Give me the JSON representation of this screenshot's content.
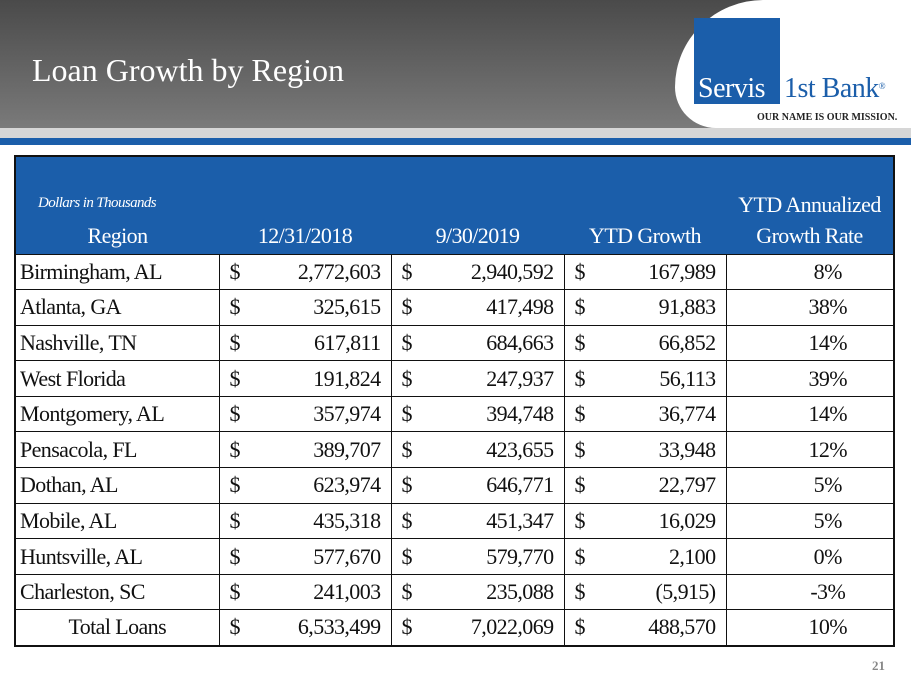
{
  "header": {
    "title": "Loan Growth by Region"
  },
  "logo": {
    "part1": "Servis",
    "part2": "1st Bank",
    "reg": "®",
    "tagline": "OUR NAME IS OUR MISSION."
  },
  "table": {
    "note": "Dollars in Thousands",
    "headers": [
      "Region",
      "12/31/2018",
      "9/30/2019",
      "YTD Growth",
      "YTD Annualized",
      "Growth Rate"
    ],
    "currency": "$",
    "rows": [
      [
        "Birmingham, AL",
        "2,772,603",
        "2,940,592",
        "167,989",
        "8%"
      ],
      [
        "Atlanta, GA",
        "325,615",
        "417,498",
        "91,883",
        "38%"
      ],
      [
        "Nashville, TN",
        "617,811",
        "684,663",
        "66,852",
        "14%"
      ],
      [
        "West Florida",
        "191,824",
        "247,937",
        "56,113",
        "39%"
      ],
      [
        "Montgomery, AL",
        "357,974",
        "394,748",
        "36,774",
        "14%"
      ],
      [
        "Pensacola, FL",
        "389,707",
        "423,655",
        "33,948",
        "12%"
      ],
      [
        "Dothan, AL",
        "623,974",
        "646,771",
        "22,797",
        "5%"
      ],
      [
        "Mobile, AL",
        "435,318",
        "451,347",
        "16,029",
        "5%"
      ],
      [
        "Huntsville, AL",
        "577,670",
        "579,770",
        "2,100",
        "0%"
      ],
      [
        "Charleston, SC",
        "241,003",
        "235,088",
        "(5,915)",
        "-3%"
      ],
      [
        "Total Loans",
        "6,533,499",
        "7,022,069",
        "488,570",
        "10%"
      ]
    ]
  },
  "page_number": "21"
}
